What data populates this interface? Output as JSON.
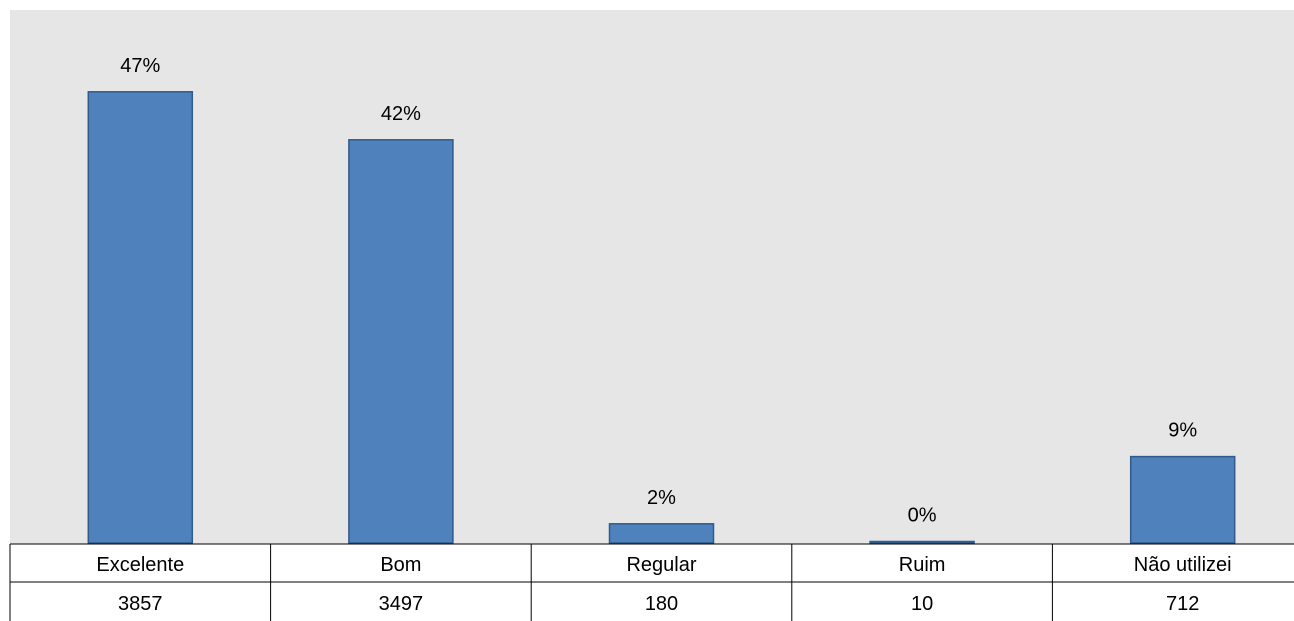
{
  "chart_data": {
    "type": "bar",
    "categories": [
      "Excelente",
      "Bom",
      "Regular",
      "Ruim",
      "Não utilizei"
    ],
    "values": [
      47,
      42,
      2,
      0,
      9
    ],
    "data_labels": [
      "47%",
      "42%",
      "2%",
      "0%",
      "9%"
    ],
    "table_row": [
      "3857",
      "3497",
      "180",
      "10",
      "712"
    ],
    "ylim": [
      0,
      56
    ],
    "grid": false,
    "legend": "none",
    "colors": {
      "bar": "#4f81bd",
      "bar_border": "#2f5a8c",
      "plot_background": "#e6e6e6"
    }
  }
}
